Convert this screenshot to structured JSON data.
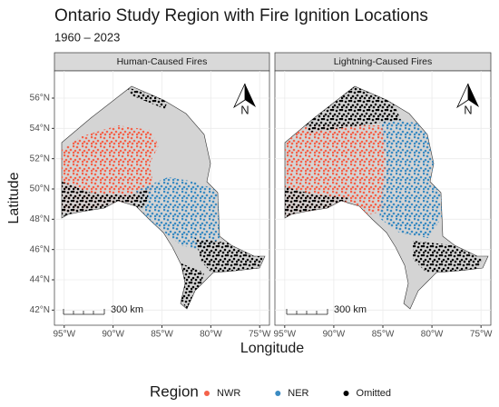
{
  "chart_data": {
    "type": "map",
    "title": "Ontario Study Region with Fire Ignition Locations",
    "subtitle": "1960 – 2023",
    "panels": [
      "Human-Caused Fires",
      "Lightning-Caused Fires"
    ],
    "x_label": "Longitude",
    "y_label": "Latitude",
    "xlim": [
      -96,
      -74
    ],
    "ylim": [
      41,
      57.8
    ],
    "xticks": [
      {
        "value": -95,
        "label": "95°W"
      },
      {
        "value": -90,
        "label": "90°W"
      },
      {
        "value": -85,
        "label": "85°W"
      },
      {
        "value": -80,
        "label": "80°W"
      },
      {
        "value": -75,
        "label": "75°W"
      }
    ],
    "yticks": [
      {
        "value": 42,
        "label": "42°N"
      },
      {
        "value": 44,
        "label": "44°N"
      },
      {
        "value": 46,
        "label": "46°N"
      },
      {
        "value": 48,
        "label": "48°N"
      },
      {
        "value": 50,
        "label": "50°N"
      },
      {
        "value": 52,
        "label": "52°N"
      },
      {
        "value": 54,
        "label": "54°N"
      },
      {
        "value": 56,
        "label": "56°N"
      }
    ],
    "grid": true,
    "legend": {
      "title": "Region",
      "position": "bottom"
    },
    "series": [
      {
        "name": "NWR",
        "color": "#f4624a"
      },
      {
        "name": "NER",
        "color": "#3b8bc2"
      },
      {
        "name": "Omitted",
        "color": "#000000"
      }
    ],
    "scale_bar": "300 km",
    "north_arrow": "N"
  }
}
